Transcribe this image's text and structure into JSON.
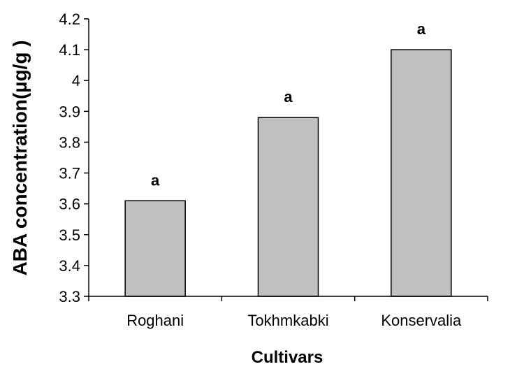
{
  "chart_data": {
    "type": "bar",
    "categories": [
      "Roghani",
      "Tokhmkabki",
      "Konservalia"
    ],
    "values": [
      3.61,
      3.88,
      4.1
    ],
    "significance_labels": [
      "a",
      "a",
      "a"
    ],
    "xlabel": "Cultivars",
    "ylabel": "ABA concentration(µg/g )",
    "ylim": [
      3.3,
      4.2
    ],
    "yticks": [
      "3.3",
      "3.4",
      "3.5",
      "3.6",
      "3.7",
      "3.8",
      "3.9",
      "4",
      "4.1",
      "4.2"
    ],
    "grid": false,
    "bar_color": "#c0c0c0",
    "bar_edge_color": "#000000"
  }
}
